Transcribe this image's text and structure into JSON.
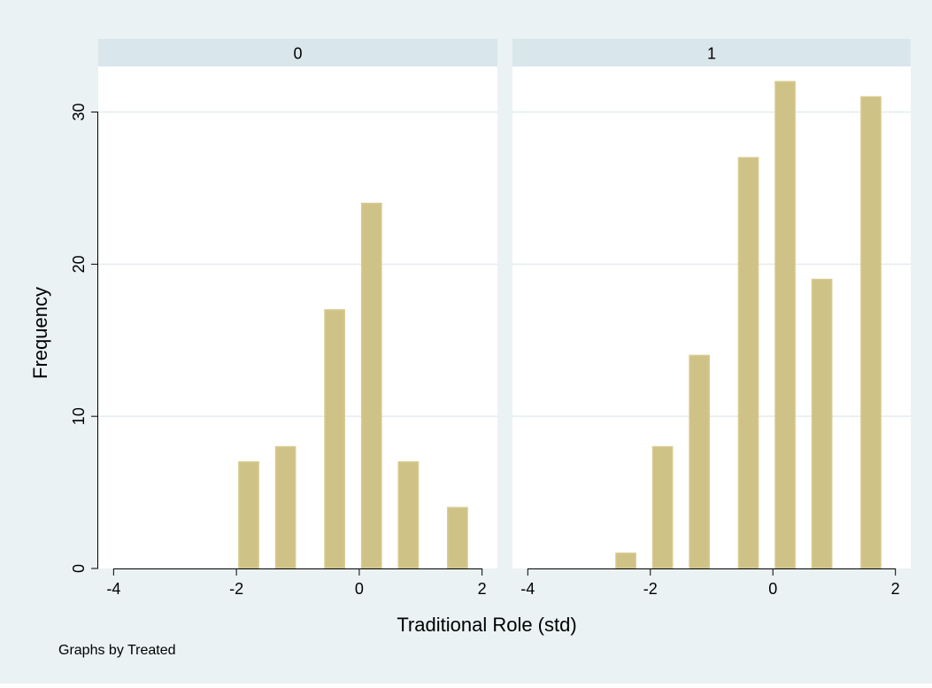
{
  "chart_data": {
    "type": "bar",
    "xlabel": "Traditional Role (std)",
    "ylabel": "Frequency",
    "note": "Graphs by Treated",
    "xlim": [
      -4.25,
      2.25
    ],
    "ylim": [
      0,
      33
    ],
    "x_ticks": [
      -4,
      -2,
      0,
      2
    ],
    "y_ticks": [
      0,
      10,
      20,
      30
    ],
    "grid": true,
    "bar_width": 0.32,
    "colors": {
      "background": "#eaf2f3",
      "plot_area": "#ffffff",
      "panel_header": "#d9e6eb",
      "bar_fill": "#cfc286",
      "bar_edge": "#d8ca8e",
      "grid": "#e4ecef",
      "axis": "#000000"
    },
    "panels": [
      {
        "title": "0",
        "bars": [
          {
            "x": -1.8,
            "y": 7
          },
          {
            "x": -1.2,
            "y": 8
          },
          {
            "x": -0.4,
            "y": 17
          },
          {
            "x": 0.2,
            "y": 24
          },
          {
            "x": 0.8,
            "y": 7
          },
          {
            "x": 1.6,
            "y": 4
          }
        ]
      },
      {
        "title": "1",
        "bars": [
          {
            "x": -2.4,
            "y": 1
          },
          {
            "x": -1.8,
            "y": 8
          },
          {
            "x": -1.2,
            "y": 14
          },
          {
            "x": -0.4,
            "y": 27
          },
          {
            "x": 0.2,
            "y": 32
          },
          {
            "x": 0.8,
            "y": 19
          },
          {
            "x": 1.6,
            "y": 31
          }
        ]
      }
    ]
  }
}
